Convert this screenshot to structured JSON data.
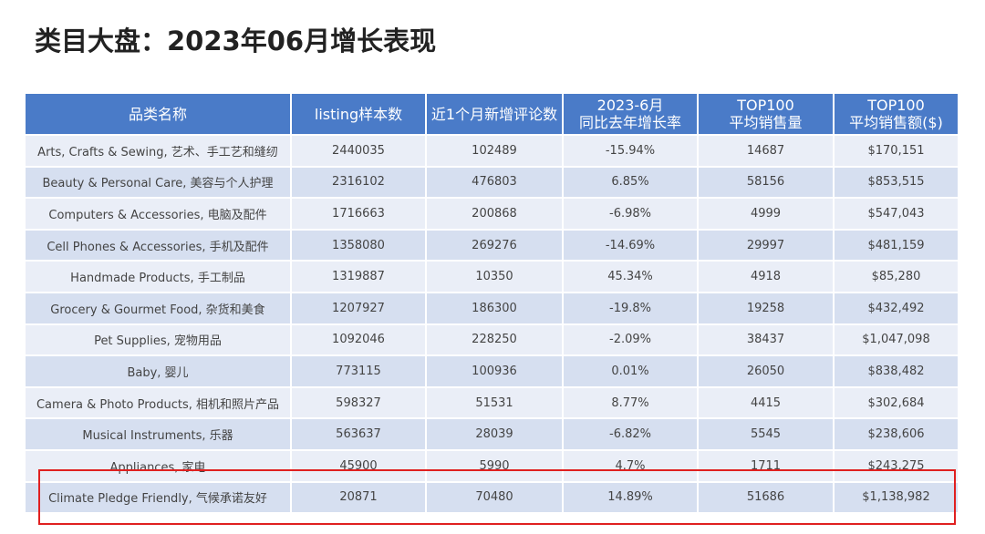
{
  "title": "类目大盘：2023年06月增长表现",
  "table": {
    "header": [
      [
        "品类名称"
      ],
      [
        "listing样本数"
      ],
      [
        "近1个月新增评论数"
      ],
      [
        "2023-6月",
        "同比去年增长率"
      ],
      [
        "TOP100",
        "平均销售量"
      ],
      [
        "TOP100",
        "平均销售额($)"
      ]
    ],
    "rows": [
      [
        "Arts, Crafts & Sewing, 艺术、手工艺和缝纫",
        "2440035",
        "102489",
        "-15.94%",
        "14687",
        "$170,151"
      ],
      [
        "Beauty & Personal Care, 美容与个人护理",
        "2316102",
        "476803",
        "6.85%",
        "58156",
        "$853,515"
      ],
      [
        "Computers & Accessories, 电脑及配件",
        "1716663",
        "200868",
        "-6.98%",
        "4999",
        "$547,043"
      ],
      [
        "Cell Phones & Accessories, 手机及配件",
        "1358080",
        "269276",
        "-14.69%",
        "29997",
        "$481,159"
      ],
      [
        "Handmade Products, 手工制品",
        "1319887",
        "10350",
        "45.34%",
        "4918",
        "$85,280"
      ],
      [
        "Grocery & Gourmet Food, 杂货和美食",
        "1207927",
        "186300",
        "-19.8%",
        "19258",
        "$432,492"
      ],
      [
        "Pet Supplies, 宠物用品",
        "1092046",
        "228250",
        "-2.09%",
        "38437",
        "$1,047,098"
      ],
      [
        "Baby, 婴儿",
        "773115",
        "100936",
        "0.01%",
        "26050",
        "$838,482"
      ],
      [
        "Camera & Photo Products, 相机和照片产品",
        "598327",
        "51531",
        "8.77%",
        "4415",
        "$302,684"
      ],
      [
        "Musical Instruments, 乐器",
        "563637",
        "28039",
        "-6.82%",
        "5545",
        "$238,606"
      ],
      [
        "Appliances, 家电",
        "45900",
        "5990",
        "4.7%",
        "1711",
        "$243,275"
      ],
      [
        "Climate Pledge Friendly, 气候承诺友好",
        "20871",
        "70480",
        "14.89%",
        "51686",
        "$1,138,982"
      ]
    ]
  }
}
